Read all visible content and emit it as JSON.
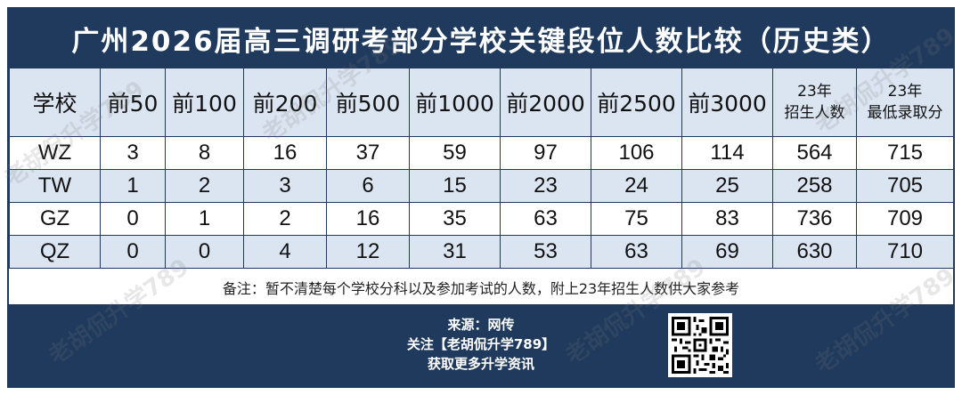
{
  "title": "广州2026届高三调研考部分学校关键段位人数比较（历史类）",
  "table": {
    "headers": [
      "学校",
      "前50",
      "前100",
      "前200",
      "前500",
      "前1000",
      "前2000",
      "前2500",
      "前3000",
      "23年\n招生人数",
      "23年\n最低录取分"
    ],
    "headers_split": {
      "enroll_line1": "23年",
      "enroll_line2": "招生人数",
      "minscore_line1": "23年",
      "minscore_line2": "最低录取分"
    },
    "rows": [
      [
        "WZ",
        "3",
        "8",
        "16",
        "37",
        "59",
        "97",
        "106",
        "114",
        "564",
        "715"
      ],
      [
        "TW",
        "1",
        "2",
        "3",
        "6",
        "15",
        "23",
        "24",
        "25",
        "258",
        "705"
      ],
      [
        "GZ",
        "0",
        "1",
        "2",
        "16",
        "35",
        "63",
        "75",
        "83",
        "736",
        "709"
      ],
      [
        "QZ",
        "0",
        "0",
        "4",
        "12",
        "31",
        "53",
        "63",
        "69",
        "630",
        "710"
      ]
    ]
  },
  "note": "备注：暂不清楚每个学校分科以及参加考试的人数，附上23年招生人数供大家参考",
  "footer": {
    "source": "来源：网传",
    "follow": "关注【老胡侃升学789】",
    "more": "获取更多升学资讯"
  },
  "watermark": "老胡侃升学789",
  "colors": {
    "primary": "#1f3a5c",
    "stripe": "#dbe5f1"
  },
  "icons": {
    "qr": "qr-code-icon"
  }
}
